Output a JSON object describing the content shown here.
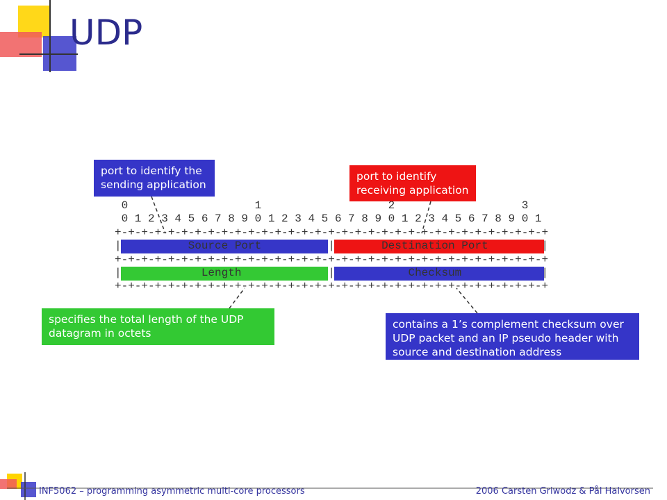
{
  "title": "UDP",
  "diagram": {
    "rows": [
      " 0                   1                   2                   3",
      " 0 1 2 3 4 5 6 7 8 9 0 1 2 3 4 5 6 7 8 9 0 1 2 3 4 5 6 7 8 9 0 1",
      "+-+-+-+-+-+-+-+-+-+-+-+-+-+-+-+-+-+-+-+-+-+-+-+-+-+-+-+-+-+-+-+-+",
      "|          Source Port          |       Destination Port        |",
      "+-+-+-+-+-+-+-+-+-+-+-+-+-+-+-+-+-+-+-+-+-+-+-+-+-+-+-+-+-+-+-+-+",
      "|            Length             |           Checksum            |",
      "+-+-+-+-+-+-+-+-+-+-+-+-+-+-+-+-+-+-+-+-+-+-+-+-+-+-+-+-+-+-+-+-+"
    ]
  },
  "callouts": [
    {
      "lines": [
        "port to identify the",
        "sending application"
      ]
    },
    {
      "lines": [
        "port to identify",
        "receiving application"
      ]
    },
    {
      "lines": [
        "specifies the total length of the UDP",
        "datagram in octets"
      ]
    },
    {
      "lines": [
        "contains a 1’s complement checksum over",
        "UDP packet and an IP pseudo header with",
        "source and destination address"
      ]
    }
  ],
  "footer": {
    "left": "INF5062 – programming asymmetric multi-core processors",
    "right": "2006 Carsten Griwodz & Pål Halvorsen"
  }
}
